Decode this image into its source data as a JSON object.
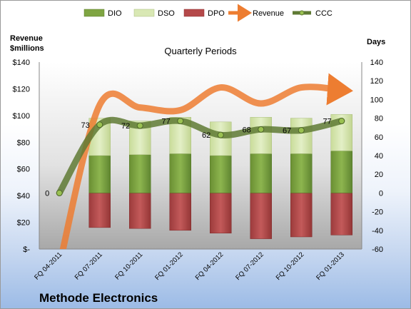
{
  "chart_data": {
    "type": "bar",
    "title": "Quarterly Periods",
    "company": "Methode Electronics",
    "y_left_label_line1": "Revenue",
    "y_left_label_line2": "$millions",
    "y_right_label": "Days",
    "y_left_ticks": [
      "$140",
      "$120",
      "$100",
      "$80",
      "$60",
      "$40",
      "$20",
      "$-"
    ],
    "y_right_ticks": [
      "140",
      "120",
      "100",
      "80",
      "60",
      "40",
      "20",
      "0",
      "-20",
      "-40",
      "-60"
    ],
    "y_left_range": [
      0,
      140
    ],
    "y_right_range": [
      -60,
      140
    ],
    "categories": [
      "FQ 04-2011",
      "FQ 07-2011",
      "FQ 10-2011",
      "FQ 01-2012",
      "FQ 04-2012",
      "FQ 07-2012",
      "FQ 10-2012",
      "FQ 01-2013"
    ],
    "series": [
      {
        "name": "DIO",
        "values": [
          null,
          40,
          41,
          42,
          40,
          42,
          42,
          45
        ]
      },
      {
        "name": "DSO",
        "values": [
          null,
          40,
          36,
          39,
          36,
          39,
          38,
          39
        ]
      },
      {
        "name": "DPO",
        "values": [
          null,
          -37,
          -38,
          -40,
          -43,
          -49,
          -47,
          -45
        ]
      },
      {
        "name": "Revenue",
        "values": [
          -12,
          108,
          106,
          104,
          121,
          109,
          121,
          119
        ]
      },
      {
        "name": "CCC",
        "values": [
          0,
          73,
          72,
          77,
          62,
          68,
          67,
          77
        ]
      }
    ],
    "ccc_labels": [
      "0",
      "73",
      "72",
      "77",
      "62",
      "68",
      "67",
      "77"
    ],
    "legend_position": "top",
    "colors": {
      "DIO": "#7fa542",
      "DSO": "#d9e8b4",
      "DPO": "#b5494a",
      "Revenue": "#ed7d31",
      "CCC": "#5f7a34",
      "plot_bg_top": "#ffffff",
      "plot_bg_bottom": "#b3b3b3"
    },
    "grid": false
  }
}
